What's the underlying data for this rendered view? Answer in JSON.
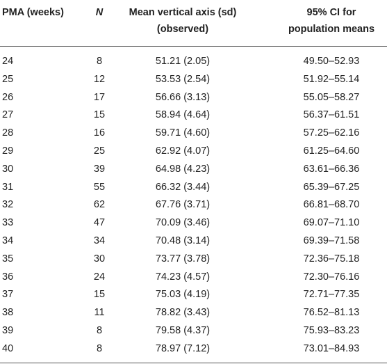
{
  "table": {
    "headers": {
      "pma": "PMA (weeks)",
      "n": "N",
      "mean_line1": "Mean vertical axis (sd)",
      "mean_line2": "(observed)",
      "ci_line1": "95% CI for",
      "ci_line2": "population means"
    },
    "rows": [
      {
        "pma": "24",
        "n": "8",
        "mean": "51.21 (2.05)",
        "ci": "49.50–52.93"
      },
      {
        "pma": "25",
        "n": "12",
        "mean": "53.53 (2.54)",
        "ci": "51.92–55.14"
      },
      {
        "pma": "26",
        "n": "17",
        "mean": "56.66 (3.13)",
        "ci": "55.05–58.27"
      },
      {
        "pma": "27",
        "n": "15",
        "mean": "58.94 (4.64)",
        "ci": "56.37–61.51"
      },
      {
        "pma": "28",
        "n": "16",
        "mean": "59.71 (4.60)",
        "ci": "57.25–62.16"
      },
      {
        "pma": "29",
        "n": "25",
        "mean": "62.92 (4.07)",
        "ci": "61.25–64.60"
      },
      {
        "pma": "30",
        "n": "39",
        "mean": "64.98 (4.23)",
        "ci": "63.61–66.36"
      },
      {
        "pma": "31",
        "n": "55",
        "mean": "66.32 (3.44)",
        "ci": "65.39–67.25"
      },
      {
        "pma": "32",
        "n": "62",
        "mean": "67.76 (3.71)",
        "ci": "66.81–68.70"
      },
      {
        "pma": "33",
        "n": "47",
        "mean": "70.09 (3.46)",
        "ci": "69.07–71.10"
      },
      {
        "pma": "34",
        "n": "34",
        "mean": "70.48 (3.14)",
        "ci": "69.39–71.58"
      },
      {
        "pma": "35",
        "n": "30",
        "mean": "73.77 (3.78)",
        "ci": "72.36–75.18"
      },
      {
        "pma": "36",
        "n": "24",
        "mean": "74.23 (4.57)",
        "ci": "72.30–76.16"
      },
      {
        "pma": "37",
        "n": "15",
        "mean": "75.03 (4.19)",
        "ci": "72.71–77.35"
      },
      {
        "pma": "38",
        "n": "11",
        "mean": "78.82 (3.43)",
        "ci": "76.52–81.13"
      },
      {
        "pma": "39",
        "n": "8",
        "mean": "79.58 (4.37)",
        "ci": "75.93–83.23"
      },
      {
        "pma": "40",
        "n": "8",
        "mean": "78.97 (7.12)",
        "ci": "73.01–84.93"
      }
    ]
  }
}
